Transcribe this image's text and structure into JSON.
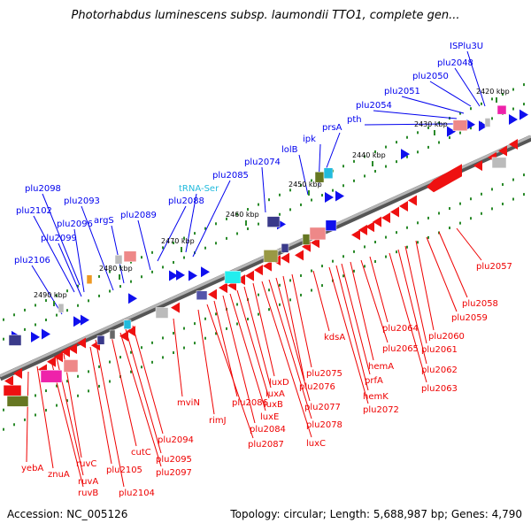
{
  "title": "Photorhabdus luminescens subsp. laumondii TTO1, complete gen...",
  "footer": {
    "accession": "Accession: NC_005126",
    "summary": "Topology: circular; Length: 5,688,987 bp; Genes: 4,790"
  },
  "colors": {
    "backbone": "#8a8a8a",
    "forward_label": "#0000ee",
    "reverse_label": "#ee0000",
    "trna_label": "#22bbdd",
    "tick_green": "#2a8a2a"
  },
  "tick_labels": [
    "2490 kbp",
    "2480 kbp",
    "2470 kbp",
    "2460 kbp",
    "2450 kbp",
    "2440 kbp",
    "2430 kbp",
    "2420 kbp"
  ],
  "forward_genes": [
    "ISPlu3U",
    "plu2048",
    "plu2050",
    "plu2051",
    "plu2054",
    "pth",
    "prsA",
    "ipk",
    "lolB",
    "plu2074",
    "tRNA-Ser",
    "plu2085",
    "plu2088",
    "plu2089",
    "argS",
    "plu2093",
    "plu2096",
    "plu2098",
    "plu2102",
    "plu2099",
    "plu2106"
  ],
  "reverse_genes": [
    "plu2057",
    "plu2058",
    "plu2059",
    "plu2060",
    "plu2061",
    "plu2062",
    "plu2063",
    "plu2064",
    "plu2065",
    "hemA",
    "prfA",
    "hemK",
    "plu2072",
    "kdsA",
    "plu2075",
    "plu2076",
    "plu2077",
    "plu2078",
    "luxC",
    "luxD",
    "luxA",
    "luxB",
    "luxE",
    "plu2084",
    "plu2086",
    "plu2087",
    "rimJ",
    "mviN",
    "plu2094",
    "plu2095",
    "plu2097",
    "cutC",
    "plu2104",
    "plu2105",
    "ruvC",
    "ruvA",
    "ruvB",
    "znuA",
    "yebA"
  ]
}
